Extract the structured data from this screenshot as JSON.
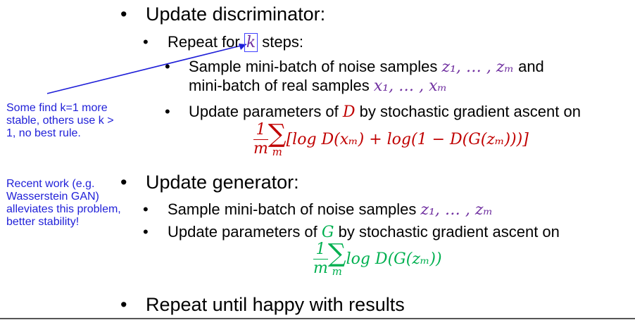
{
  "slide": {
    "bullet1": "Update discriminator:",
    "repeat": {
      "prefix": "Repeat for ",
      "k": "k",
      "suffix": " steps:"
    },
    "sample_noise": {
      "text": "Sample mini-batch of noise samples ",
      "math": "z₁, … , zₘ",
      "and": " and"
    },
    "sample_real": {
      "text": "mini-batch of real samples ",
      "math": "x₁, … , xₘ"
    },
    "update_d": {
      "text1": "Update parameters of ",
      "var": "D",
      "text2": " by stochastic gradient ascent on"
    },
    "d_formula": {
      "num": "1",
      "den": "m",
      "sigma": "∑",
      "sub": "m",
      "body": "[log D(xₘ) + log(1 − D(G(zₘ)))]"
    },
    "bullet2": "Update generator:",
    "gen_sample": {
      "text": "Sample mini-batch of noise samples ",
      "math": "z₁, … , zₘ"
    },
    "update_g": {
      "text1": "Update parameters of ",
      "var": "G",
      "text2": " by stochastic gradient ascent on"
    },
    "g_formula": {
      "num": "1",
      "den": "m",
      "sigma": "∑",
      "sub": "m",
      "body": "log D(G(zₘ))"
    },
    "bullet3": "Repeat until happy with results",
    "bullet_glyph": "•"
  },
  "notes": {
    "note1": "Some find k=1 more stable, others use k > 1, no best rule.",
    "note2": "Recent work (e.g. Wasserstein GAN) alleviates this problem, better stability!"
  },
  "colors": {
    "annotation": "#1f1fd8",
    "purple": "#7030a0",
    "red": "#c00000",
    "green": "#00b050"
  }
}
